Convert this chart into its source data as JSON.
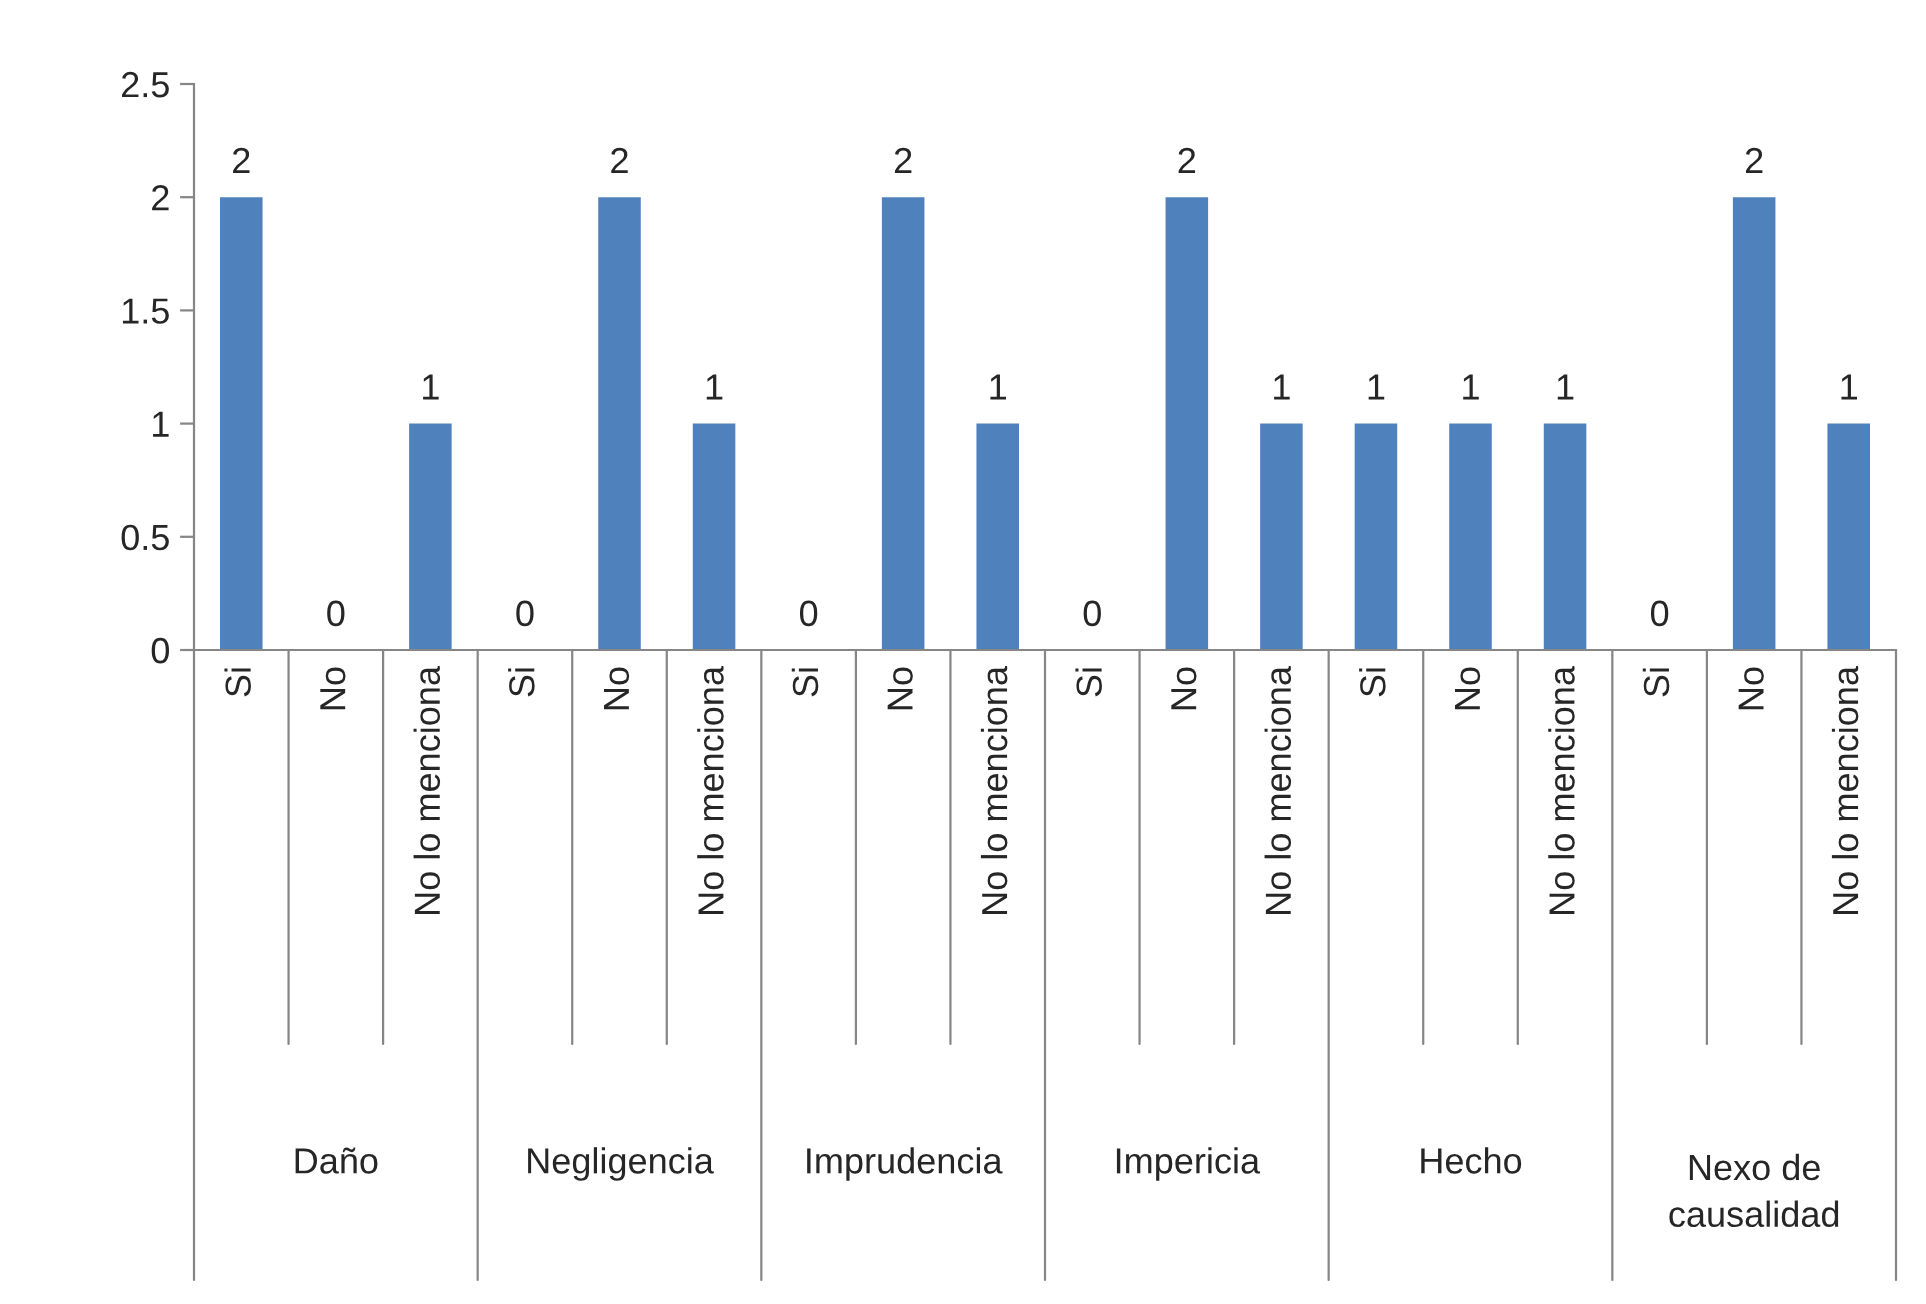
{
  "chart_data": {
    "type": "bar",
    "categories": [
      "Si",
      "No",
      "No lo menciona",
      "Si",
      "No",
      "No lo menciona",
      "Si",
      "No",
      "No lo menciona",
      "Si",
      "No",
      "No lo menciona",
      "Si",
      "No",
      "No lo menciona",
      "Si",
      "No",
      "No lo menciona"
    ],
    "values": [
      2,
      0,
      1,
      0,
      2,
      1,
      0,
      2,
      1,
      0,
      2,
      1,
      1,
      1,
      1,
      0,
      2,
      1
    ],
    "color": "#4f81bd",
    "ylim": [
      0,
      2.5
    ],
    "yticks": [
      0,
      0.5,
      1,
      1.5,
      2,
      2.5
    ],
    "data_labels": true,
    "grid": false,
    "legend": false,
    "annotations": [
      "Daño",
      "Negligencia",
      "Imprudencia",
      "Impericia",
      "Hecho",
      "Nexo de causalidad"
    ]
  }
}
